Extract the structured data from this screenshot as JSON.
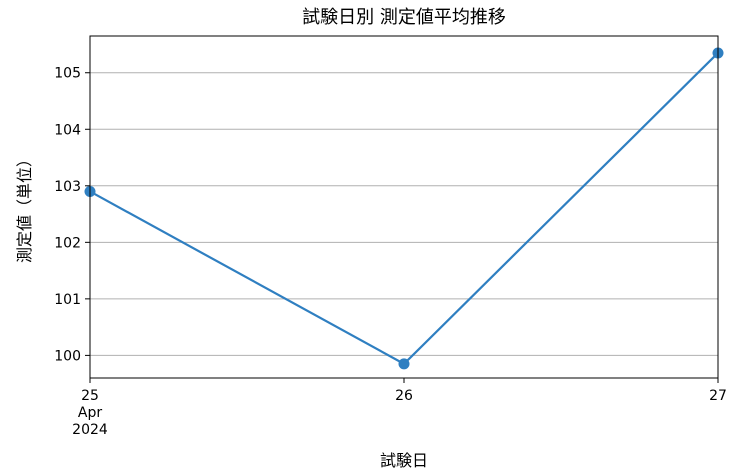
{
  "chart_data": {
    "type": "line",
    "title": "試験日別 測定値平均推移",
    "xlabel": "試験日",
    "ylabel": "測定値（単位）",
    "x": [
      "2024-04-25",
      "2024-04-26",
      "2024-04-27"
    ],
    "x_tick_labels": [
      {
        "day": "25",
        "month": "Apr",
        "year": "2024"
      },
      {
        "day": "26",
        "month": "",
        "year": ""
      },
      {
        "day": "27",
        "month": "",
        "year": ""
      }
    ],
    "series": [
      {
        "values": [
          102.9,
          99.85,
          105.35
        ],
        "color": "#2f7fc1"
      }
    ],
    "ylim": [
      99.6,
      105.65
    ],
    "yticks": [
      "100",
      "101",
      "102",
      "103",
      "104",
      "105"
    ],
    "grid": "horizontal"
  }
}
